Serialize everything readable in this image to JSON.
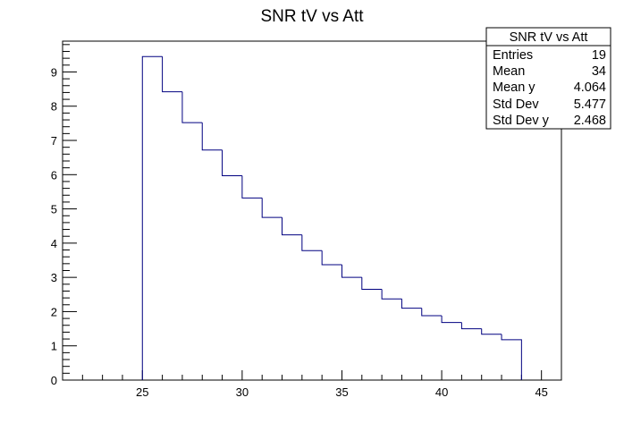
{
  "chart_data": {
    "type": "histogram",
    "title": "SNR tV vs Att",
    "xlabel": "",
    "ylabel": "",
    "xlim": [
      21,
      46
    ],
    "ylim": [
      0,
      9.9
    ],
    "x_ticks": [
      25,
      30,
      35,
      40,
      45
    ],
    "y_ticks": [
      0,
      1,
      2,
      3,
      4,
      5,
      6,
      7,
      8,
      9
    ],
    "bin_width": 1,
    "bin_edges": [
      25,
      26,
      27,
      28,
      29,
      30,
      31,
      32,
      33,
      34,
      35,
      36,
      37,
      38,
      39,
      40,
      41,
      42,
      43,
      44
    ],
    "values": [
      9.45,
      8.42,
      7.52,
      6.72,
      5.97,
      5.32,
      4.75,
      4.24,
      3.78,
      3.37,
      3.0,
      2.65,
      2.37,
      2.1,
      1.88,
      1.68,
      1.5,
      1.34,
      1.18
    ],
    "line_color": "#000080",
    "grid": false,
    "legend": "none",
    "stats_box": {
      "title": "SNR tV vs Att",
      "placement": "top-right",
      "rows": [
        {
          "label": "Entries",
          "value": "19"
        },
        {
          "label": "Mean",
          "value": "34"
        },
        {
          "label": "Mean y",
          "value": "4.064"
        },
        {
          "label": "Std Dev",
          "value": "5.477"
        },
        {
          "label": "Std Dev y",
          "value": "2.468"
        }
      ]
    }
  }
}
